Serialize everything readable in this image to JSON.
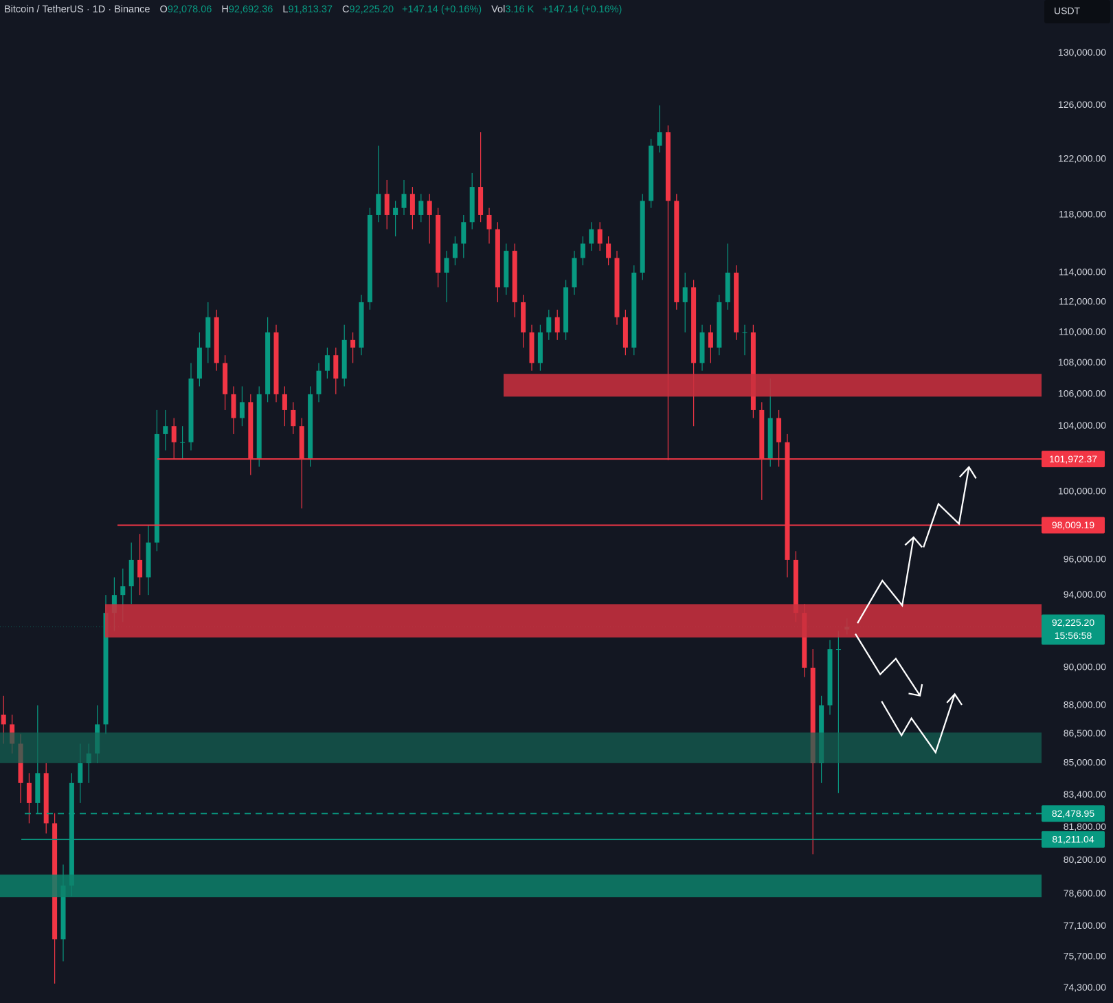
{
  "header": {
    "symbol": "Bitcoin / TetherUS · 1D · Binance",
    "ohlc": [
      {
        "key": "O",
        "value": "92,078.06"
      },
      {
        "key": "H",
        "value": "92,692.36"
      },
      {
        "key": "L",
        "value": "91,813.37"
      },
      {
        "key": "C",
        "value": "92,225.20"
      }
    ],
    "change": "+147.14 (+0.16%)",
    "volume": {
      "key": "Vol",
      "value": "3.16 K",
      "change": "+147.14 (+0.16%)"
    }
  },
  "chart_data": {
    "type": "candlestick",
    "currency": "USDT",
    "log_scale": true,
    "grid": false,
    "up_color": "#089981",
    "down_color": "#f23645",
    "ylim": [
      73640,
      134200
    ],
    "yticks": [
      {
        "value": 130000,
        "label": "130,000.00"
      },
      {
        "value": 126000,
        "label": "126,000.00"
      },
      {
        "value": 122000,
        "label": "122,000.00"
      },
      {
        "value": 118000,
        "label": "118,000.00"
      },
      {
        "value": 114000,
        "label": "114,000.00"
      },
      {
        "value": 112000,
        "label": "112,000.00"
      },
      {
        "value": 110000,
        "label": "110,000.00"
      },
      {
        "value": 108000,
        "label": "108,000.00"
      },
      {
        "value": 106000,
        "label": "106,000.00"
      },
      {
        "value": 104000,
        "label": "104,000.00"
      },
      {
        "value": 100000,
        "label": "100,000.00"
      },
      {
        "value": 96000,
        "label": "96,000.00"
      },
      {
        "value": 94000,
        "label": "94,000.00"
      },
      {
        "value": 90000,
        "label": "90,000.00"
      },
      {
        "value": 88000,
        "label": "88,000.00"
      },
      {
        "value": 86500,
        "label": "86,500.00"
      },
      {
        "value": 85000,
        "label": "85,000.00"
      },
      {
        "value": 83400,
        "label": "83,400.00"
      },
      {
        "value": 81800,
        "label": "81,800.00"
      },
      {
        "value": 80200,
        "label": "80,200.00"
      },
      {
        "value": 78600,
        "label": "78,600.00"
      },
      {
        "value": 77100,
        "label": "77,100.00"
      },
      {
        "value": 75700,
        "label": "75,700.00"
      },
      {
        "value": 74300,
        "label": "74,300.00"
      }
    ],
    "candles": [
      [
        87500,
        88500,
        86000,
        87000
      ],
      [
        87000,
        87500,
        85500,
        86000
      ],
      [
        86000,
        86500,
        83000,
        84000
      ],
      [
        84000,
        84500,
        82000,
        83000
      ],
      [
        83000,
        88000,
        82500,
        84500
      ],
      [
        84500,
        85000,
        81500,
        82000
      ],
      [
        82000,
        82500,
        74500,
        76500
      ],
      [
        76500,
        80000,
        75500,
        79000
      ],
      [
        79000,
        84500,
        78500,
        84000
      ],
      [
        84000,
        86000,
        83000,
        85000
      ],
      [
        85000,
        86000,
        84000,
        85500
      ],
      [
        85500,
        88000,
        85000,
        87000
      ],
      [
        87000,
        94000,
        86500,
        93000
      ],
      [
        93000,
        95000,
        92000,
        94000
      ],
      [
        94000,
        95500,
        92500,
        94500
      ],
      [
        94500,
        97000,
        93500,
        96000
      ],
      [
        96000,
        97500,
        94000,
        95000
      ],
      [
        95000,
        98000,
        94000,
        97000
      ],
      [
        97000,
        105000,
        96500,
        103500
      ],
      [
        103500,
        105000,
        102500,
        104000
      ],
      [
        104000,
        104500,
        102000,
        103000
      ],
      [
        103000,
        104000,
        102000,
        103000
      ],
      [
        103000,
        108000,
        102500,
        107000
      ],
      [
        107000,
        110000,
        106500,
        109000
      ],
      [
        109000,
        112000,
        108000,
        111000
      ],
      [
        111000,
        111500,
        107500,
        108000
      ],
      [
        108000,
        108500,
        105000,
        106000
      ],
      [
        106000,
        106500,
        103500,
        104500
      ],
      [
        104500,
        106500,
        104000,
        105500
      ],
      [
        105500,
        106000,
        101000,
        102000
      ],
      [
        102000,
        106500,
        101500,
        106000
      ],
      [
        106000,
        111000,
        105500,
        110000
      ],
      [
        110000,
        110500,
        105500,
        106000
      ],
      [
        106000,
        106500,
        104000,
        105000
      ],
      [
        105000,
        105500,
        103500,
        104000
      ],
      [
        104000,
        104500,
        99000,
        102000
      ],
      [
        102000,
        106500,
        101500,
        106000
      ],
      [
        106000,
        108000,
        105500,
        107500
      ],
      [
        107500,
        109000,
        107000,
        108500
      ],
      [
        108500,
        109000,
        106000,
        107000
      ],
      [
        107000,
        110500,
        106500,
        109500
      ],
      [
        109500,
        110000,
        108000,
        109000
      ],
      [
        109000,
        112500,
        108500,
        112000
      ],
      [
        112000,
        118500,
        111500,
        118000
      ],
      [
        118000,
        123000,
        117500,
        119500
      ],
      [
        119500,
        120500,
        117000,
        118000
      ],
      [
        118000,
        119000,
        116500,
        118500
      ],
      [
        118500,
        120500,
        118000,
        119500
      ],
      [
        119500,
        120000,
        117000,
        118000
      ],
      [
        118000,
        119500,
        117500,
        119000
      ],
      [
        119000,
        119500,
        116000,
        118000
      ],
      [
        118000,
        118500,
        113000,
        114000
      ],
      [
        114000,
        115500,
        112000,
        115000
      ],
      [
        115000,
        116500,
        114500,
        116000
      ],
      [
        116000,
        118000,
        115000,
        117500
      ],
      [
        117500,
        121000,
        117000,
        120000
      ],
      [
        120000,
        124000,
        117500,
        118000
      ],
      [
        118000,
        118500,
        116000,
        117000
      ],
      [
        117000,
        117500,
        112000,
        113000
      ],
      [
        113000,
        116000,
        112500,
        115500
      ],
      [
        115500,
        116000,
        111000,
        112000
      ],
      [
        112000,
        112500,
        109000,
        110000
      ],
      [
        110000,
        110500,
        107500,
        108000
      ],
      [
        108000,
        110500,
        107500,
        110000
      ],
      [
        110000,
        111500,
        109500,
        111000
      ],
      [
        111000,
        111500,
        109500,
        110000
      ],
      [
        110000,
        113500,
        109500,
        113000
      ],
      [
        113000,
        115500,
        112500,
        115000
      ],
      [
        115000,
        116500,
        114500,
        116000
      ],
      [
        116000,
        117500,
        115500,
        117000
      ],
      [
        117000,
        117500,
        115500,
        116000
      ],
      [
        116000,
        116500,
        114500,
        115000
      ],
      [
        115000,
        115500,
        110500,
        111000
      ],
      [
        111000,
        111500,
        108500,
        109000
      ],
      [
        109000,
        114500,
        108500,
        114000
      ],
      [
        114000,
        119500,
        113500,
        119000
      ],
      [
        119000,
        123500,
        118500,
        123000
      ],
      [
        123000,
        126000,
        122500,
        124000
      ],
      [
        124000,
        124500,
        101900,
        119000
      ],
      [
        119000,
        119500,
        111500,
        112000
      ],
      [
        112000,
        114000,
        110000,
        113000
      ],
      [
        113000,
        113500,
        104000,
        108000
      ],
      [
        108000,
        110500,
        107500,
        110000
      ],
      [
        110000,
        110500,
        108000,
        109000
      ],
      [
        109000,
        112500,
        108500,
        112000
      ],
      [
        112000,
        116000,
        111500,
        114000
      ],
      [
        114000,
        114500,
        109500,
        110000
      ],
      [
        110000,
        110500,
        108500,
        110000
      ],
      [
        110000,
        110500,
        104500,
        105000
      ],
      [
        105000,
        105500,
        99500,
        102000
      ],
      [
        102000,
        107000,
        101500,
        104500
      ],
      [
        104500,
        105000,
        101500,
        103000
      ],
      [
        103000,
        103500,
        95000,
        96000
      ],
      [
        96000,
        96500,
        92500,
        93000
      ],
      [
        93000,
        93500,
        89500,
        90000
      ],
      [
        90000,
        91000,
        80500,
        85000
      ],
      [
        85000,
        88500,
        84000,
        88000
      ],
      [
        88000,
        91500,
        87500,
        91000
      ],
      [
        91000,
        92000,
        83500,
        91000
      ],
      [
        92078.06,
        92692.36,
        91813.37,
        92225.2
      ]
    ],
    "zones": [
      {
        "top": 107300,
        "bottom": 105850,
        "color": "rgba(200,48,62,0.88)"
      },
      {
        "top": 93490,
        "bottom": 91645,
        "color": "rgba(200,48,62,0.88)"
      },
      {
        "top": 86573,
        "bottom": 85006,
        "color": "rgba(20,100,84,0.7)"
      },
      {
        "top": 79520,
        "bottom": 78450,
        "color": "rgba(13,128,106,0.85)"
      }
    ],
    "levels": [
      {
        "price": {
          "value": 101972.37,
          "label": "101,972.37"
        },
        "color": "#f23645",
        "style": "solid"
      },
      {
        "price": {
          "value": 98009.19,
          "label": "98,009.19"
        },
        "color": "#f23645",
        "style": "solid"
      },
      {
        "price": {
          "value": 82478.95,
          "label": "82,478.95"
        },
        "color": "#089981",
        "style": "dashed"
      },
      {
        "price": {
          "value": 81211.04,
          "label": "81,211.04"
        },
        "color": "#089981",
        "style": "solid"
      }
    ],
    "last_price": {
      "value": 92225.2,
      "label": "92,225.20",
      "countdown": "15:56:58",
      "color": "#089981"
    }
  }
}
